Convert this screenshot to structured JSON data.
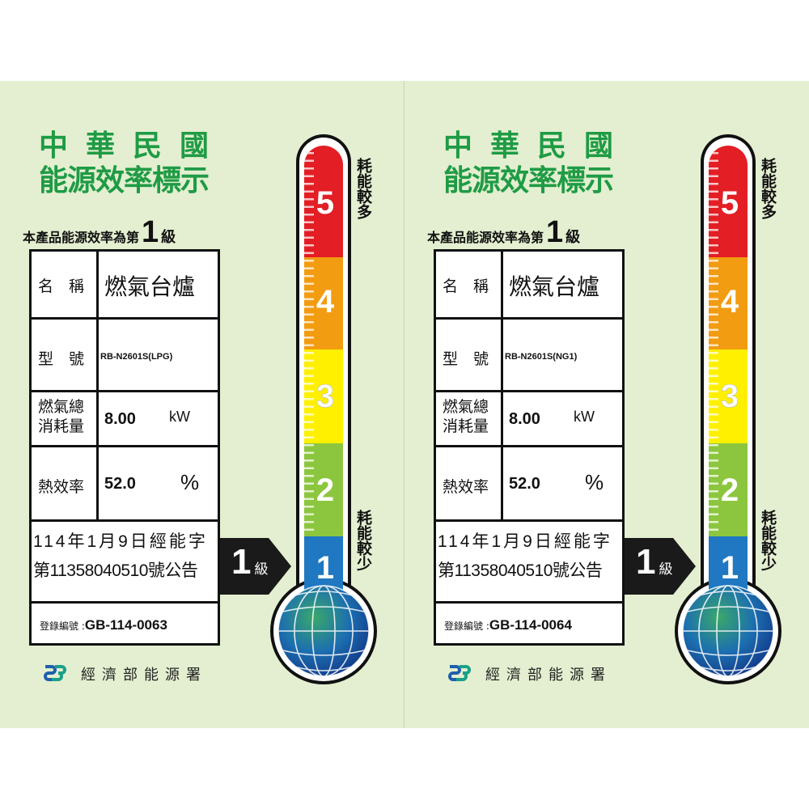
{
  "labels": [
    {
      "title_line1": "中華民國",
      "title_line2": "能源效率標示",
      "grade_sentence_prefix": "本產品能源效率為第",
      "grade": "1",
      "grade_suffix": "級",
      "name_label": "名　稱",
      "name_value": "燃氣台爐",
      "model_label": "型　號",
      "model_value": "RB-N2601S(LPG)",
      "consumption_label_1": "燃氣總",
      "consumption_label_2": "消耗量",
      "consumption_value": "8.00",
      "consumption_unit": "kW",
      "efficiency_label": "熱效率",
      "efficiency_value": "52.0",
      "efficiency_unit": "%",
      "announcement_line1": "114年1月9日經能字",
      "announcement_line2": "第11358040510號公告",
      "registration_label": "登錄編號 :",
      "registration_number": "GB-114-0063",
      "arrow_grade": "1",
      "arrow_suffix": "級",
      "scale": [
        "5",
        "4",
        "3",
        "2",
        "1"
      ],
      "high_consumption": "耗能較多",
      "low_consumption": "耗能較少",
      "agency": "經濟部能源署"
    },
    {
      "title_line1": "中華民國",
      "title_line2": "能源效率標示",
      "grade_sentence_prefix": "本產品能源效率為第",
      "grade": "1",
      "grade_suffix": "級",
      "name_label": "名　稱",
      "name_value": "燃氣台爐",
      "model_label": "型　號",
      "model_value": "RB-N2601S(NG1)",
      "consumption_label_1": "燃氣總",
      "consumption_label_2": "消耗量",
      "consumption_value": "8.00",
      "consumption_unit": "kW",
      "efficiency_label": "熱效率",
      "efficiency_value": "52.0",
      "efficiency_unit": "%",
      "announcement_line1": "114年1月9日經能字",
      "announcement_line2": "第11358040510號公告",
      "registration_label": "登錄編號 :",
      "registration_number": "GB-114-0064",
      "arrow_grade": "1",
      "arrow_suffix": "級",
      "scale": [
        "5",
        "4",
        "3",
        "2",
        "1"
      ],
      "high_consumption": "耗能較多",
      "low_consumption": "耗能較少",
      "agency": "經濟部能源署"
    }
  ],
  "colors": {
    "background": "#e3efd0",
    "title_green": "#1f9b45",
    "grade5": "#e31e24",
    "grade4": "#f29c11",
    "grade3": "#fff000",
    "grade2": "#8cc63f",
    "grade1": "#1f78c1"
  }
}
